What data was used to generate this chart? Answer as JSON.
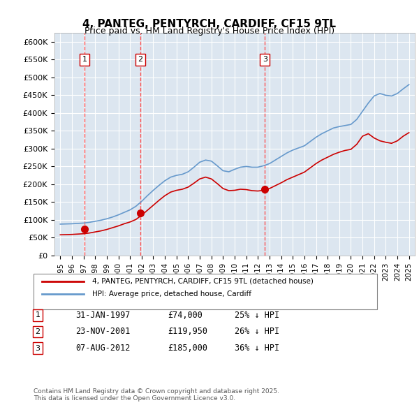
{
  "title": "4, PANTEG, PENTYRCH, CARDIFF, CF15 9TL",
  "subtitle": "Price paid vs. HM Land Registry's House Price Index (HPI)",
  "background_color": "#dce6f0",
  "plot_bg_color": "#dce6f0",
  "ylabel_color": "#000000",
  "ylim": [
    0,
    625000
  ],
  "yticks": [
    0,
    50000,
    100000,
    150000,
    200000,
    250000,
    300000,
    350000,
    400000,
    450000,
    500000,
    550000,
    600000
  ],
  "ytick_labels": [
    "£0",
    "£50K",
    "£100K",
    "£150K",
    "£200K",
    "£250K",
    "£300K",
    "£350K",
    "£400K",
    "£450K",
    "£500K",
    "£550K",
    "£600K"
  ],
  "hpi_color": "#6699cc",
  "paid_color": "#cc0000",
  "marker_color": "#cc0000",
  "vline_color": "#ff4444",
  "sale_dates": [
    1997.08,
    2001.9,
    2012.6
  ],
  "sale_prices": [
    74000,
    119950,
    185000
  ],
  "sale_labels": [
    "1",
    "2",
    "3"
  ],
  "legend_paid": "4, PANTEG, PENTYRCH, CARDIFF, CF15 9TL (detached house)",
  "legend_hpi": "HPI: Average price, detached house, Cardiff",
  "table_rows": [
    [
      "1",
      "31-JAN-1997",
      "£74,000",
      "25% ↓ HPI"
    ],
    [
      "2",
      "23-NOV-2001",
      "£119,950",
      "26% ↓ HPI"
    ],
    [
      "3",
      "07-AUG-2012",
      "£185,000",
      "36% ↓ HPI"
    ]
  ],
  "footnote": "Contains HM Land Registry data © Crown copyright and database right 2025.\nThis data is licensed under the Open Government Licence v3.0.",
  "hpi_years": [
    1995,
    1995.5,
    1996,
    1996.5,
    1997,
    1997.5,
    1998,
    1998.5,
    1999,
    1999.5,
    2000,
    2000.5,
    2001,
    2001.5,
    2002,
    2002.5,
    2003,
    2003.5,
    2004,
    2004.5,
    2005,
    2005.5,
    2006,
    2006.5,
    2007,
    2007.5,
    2008,
    2008.5,
    2009,
    2009.5,
    2010,
    2010.5,
    2011,
    2011.5,
    2012,
    2012.5,
    2013,
    2013.5,
    2014,
    2014.5,
    2015,
    2015.5,
    2016,
    2016.5,
    2017,
    2017.5,
    2018,
    2018.5,
    2019,
    2019.5,
    2020,
    2020.5,
    2021,
    2021.5,
    2022,
    2022.5,
    2023,
    2023.5,
    2024,
    2024.5,
    2025
  ],
  "hpi_values": [
    88000,
    88500,
    89000,
    90000,
    91000,
    93000,
    96000,
    99000,
    103000,
    108000,
    114000,
    121000,
    128000,
    138000,
    152000,
    168000,
    183000,
    197000,
    210000,
    220000,
    225000,
    228000,
    235000,
    248000,
    262000,
    268000,
    265000,
    252000,
    238000,
    235000,
    242000,
    248000,
    250000,
    248000,
    248000,
    252000,
    258000,
    268000,
    278000,
    288000,
    296000,
    302000,
    308000,
    320000,
    332000,
    342000,
    350000,
    358000,
    362000,
    365000,
    368000,
    382000,
    405000,
    428000,
    448000,
    455000,
    450000,
    448000,
    455000,
    468000,
    480000
  ],
  "paid_years": [
    1995,
    1995.5,
    1996,
    1996.5,
    1997,
    1997.5,
    1998,
    1998.5,
    1999,
    1999.5,
    2000,
    2000.5,
    2001,
    2001.5,
    2002,
    2002.5,
    2003,
    2003.5,
    2004,
    2004.5,
    2005,
    2005.5,
    2006,
    2006.5,
    2007,
    2007.5,
    2008,
    2008.5,
    2009,
    2009.5,
    2010,
    2010.5,
    2011,
    2011.5,
    2012,
    2012.5,
    2013,
    2013.5,
    2014,
    2014.5,
    2015,
    2015.5,
    2016,
    2016.5,
    2017,
    2017.5,
    2018,
    2018.5,
    2019,
    2019.5,
    2020,
    2020.5,
    2021,
    2021.5,
    2022,
    2022.5,
    2023,
    2023.5,
    2024,
    2024.5,
    2025
  ],
  "paid_values": [
    58000,
    58500,
    59000,
    60000,
    61000,
    63000,
    66000,
    69000,
    73000,
    78000,
    83000,
    89000,
    94000,
    101000,
    113000,
    127000,
    141000,
    155000,
    168000,
    178000,
    183000,
    186000,
    192000,
    203000,
    215000,
    220000,
    215000,
    202000,
    188000,
    182000,
    183000,
    186000,
    185000,
    182000,
    181000,
    183000,
    188000,
    196000,
    204000,
    213000,
    220000,
    227000,
    234000,
    246000,
    258000,
    268000,
    276000,
    284000,
    290000,
    295000,
    298000,
    312000,
    335000,
    342000,
    330000,
    322000,
    318000,
    315000,
    322000,
    335000,
    345000
  ],
  "xlim": [
    1994.5,
    2025.5
  ],
  "xtick_years": [
    1995,
    1996,
    1997,
    1998,
    1999,
    2000,
    2001,
    2002,
    2003,
    2004,
    2005,
    2006,
    2007,
    2008,
    2009,
    2010,
    2011,
    2012,
    2013,
    2014,
    2015,
    2016,
    2017,
    2018,
    2019,
    2020,
    2021,
    2022,
    2023,
    2024,
    2025
  ]
}
